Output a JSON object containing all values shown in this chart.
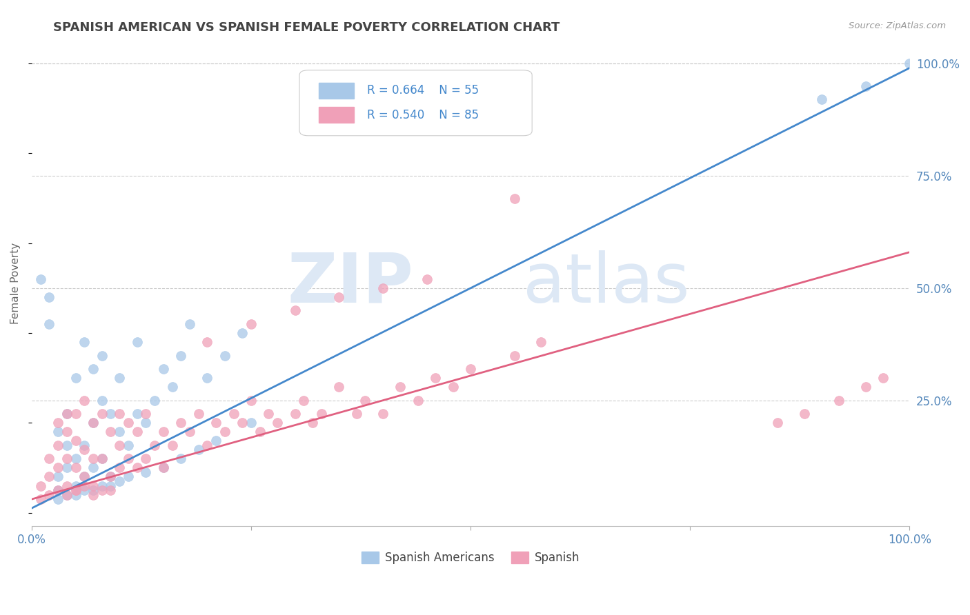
{
  "title": "SPANISH AMERICAN VS SPANISH FEMALE POVERTY CORRELATION CHART",
  "source_text": "Source: ZipAtlas.com",
  "ylabel": "Female Poverty",
  "xlim": [
    0,
    1.0
  ],
  "ylim": [
    -0.03,
    1.05
  ],
  "ytick_labels_right": [
    "100.0%",
    "75.0%",
    "50.0%",
    "25.0%"
  ],
  "ytick_positions_right": [
    1.0,
    0.75,
    0.5,
    0.25
  ],
  "series": [
    {
      "name": "Spanish Americans",
      "color": "#a8c8e8",
      "line_color": "#4488cc",
      "R": 0.664,
      "N": 55,
      "slope": 0.98,
      "intercept": 0.01,
      "x": [
        0.01,
        0.02,
        0.02,
        0.03,
        0.03,
        0.03,
        0.04,
        0.04,
        0.04,
        0.05,
        0.05,
        0.05,
        0.06,
        0.06,
        0.06,
        0.07,
        0.07,
        0.07,
        0.08,
        0.08,
        0.08,
        0.09,
        0.09,
        0.1,
        0.1,
        0.11,
        0.12,
        0.12,
        0.13,
        0.14,
        0.15,
        0.16,
        0.17,
        0.18,
        0.2,
        0.22,
        0.24,
        0.03,
        0.04,
        0.05,
        0.06,
        0.07,
        0.08,
        0.09,
        0.1,
        0.11,
        0.13,
        0.15,
        0.17,
        0.19,
        0.21,
        0.25,
        0.9,
        0.95,
        1.0
      ],
      "y": [
        0.52,
        0.48,
        0.42,
        0.05,
        0.08,
        0.18,
        0.1,
        0.15,
        0.22,
        0.06,
        0.12,
        0.3,
        0.08,
        0.15,
        0.38,
        0.1,
        0.2,
        0.32,
        0.12,
        0.25,
        0.35,
        0.08,
        0.22,
        0.18,
        0.3,
        0.15,
        0.22,
        0.38,
        0.2,
        0.25,
        0.32,
        0.28,
        0.35,
        0.42,
        0.3,
        0.35,
        0.4,
        0.03,
        0.04,
        0.04,
        0.05,
        0.05,
        0.06,
        0.06,
        0.07,
        0.08,
        0.09,
        0.1,
        0.12,
        0.14,
        0.16,
        0.2,
        0.92,
        0.95,
        1.0
      ]
    },
    {
      "name": "Spanish",
      "color": "#f0a0b8",
      "line_color": "#e06080",
      "R": 0.54,
      "N": 85,
      "slope": 0.55,
      "intercept": 0.03,
      "x": [
        0.01,
        0.01,
        0.02,
        0.02,
        0.02,
        0.03,
        0.03,
        0.03,
        0.03,
        0.04,
        0.04,
        0.04,
        0.04,
        0.05,
        0.05,
        0.05,
        0.05,
        0.06,
        0.06,
        0.06,
        0.07,
        0.07,
        0.07,
        0.08,
        0.08,
        0.08,
        0.09,
        0.09,
        0.1,
        0.1,
        0.1,
        0.11,
        0.11,
        0.12,
        0.12,
        0.13,
        0.13,
        0.14,
        0.15,
        0.15,
        0.16,
        0.17,
        0.18,
        0.19,
        0.2,
        0.21,
        0.22,
        0.23,
        0.24,
        0.25,
        0.26,
        0.27,
        0.28,
        0.3,
        0.31,
        0.32,
        0.33,
        0.35,
        0.37,
        0.38,
        0.4,
        0.42,
        0.44,
        0.46,
        0.48,
        0.5,
        0.55,
        0.58,
        0.2,
        0.25,
        0.3,
        0.35,
        0.4,
        0.45,
        0.55,
        0.85,
        0.88,
        0.92,
        0.95,
        0.97,
        0.04,
        0.05,
        0.06,
        0.07,
        0.09
      ],
      "y": [
        0.03,
        0.06,
        0.04,
        0.08,
        0.12,
        0.05,
        0.1,
        0.15,
        0.2,
        0.06,
        0.12,
        0.18,
        0.22,
        0.05,
        0.1,
        0.16,
        0.22,
        0.08,
        0.14,
        0.25,
        0.06,
        0.12,
        0.2,
        0.05,
        0.12,
        0.22,
        0.08,
        0.18,
        0.1,
        0.15,
        0.22,
        0.12,
        0.2,
        0.1,
        0.18,
        0.12,
        0.22,
        0.15,
        0.1,
        0.18,
        0.15,
        0.2,
        0.18,
        0.22,
        0.15,
        0.2,
        0.18,
        0.22,
        0.2,
        0.25,
        0.18,
        0.22,
        0.2,
        0.22,
        0.25,
        0.2,
        0.22,
        0.28,
        0.22,
        0.25,
        0.22,
        0.28,
        0.25,
        0.3,
        0.28,
        0.32,
        0.35,
        0.38,
        0.38,
        0.42,
        0.45,
        0.48,
        0.5,
        0.52,
        0.7,
        0.2,
        0.22,
        0.25,
        0.28,
        0.3,
        0.04,
        0.05,
        0.06,
        0.04,
        0.05
      ]
    }
  ],
  "background_color": "#ffffff",
  "grid_color": "#cccccc",
  "title_color": "#444444",
  "axis_label_color": "#5588bb",
  "watermark_zip": "ZIP",
  "watermark_atlas": "atlas",
  "watermark_color": "#dde8f5",
  "legend_text_color": "#333333",
  "legend_value_color": "#4488cc",
  "legend_box_color_0": "#a8c8e8",
  "legend_box_color_1": "#f0a0b8"
}
